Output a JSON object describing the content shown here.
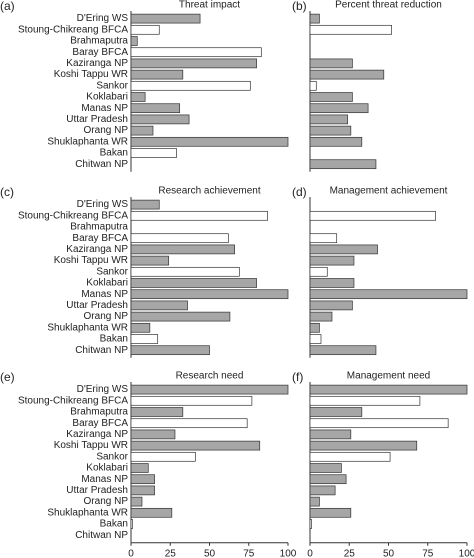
{
  "chart_data": [
    {
      "type": "bar",
      "orientation": "horizontal",
      "panel": "(a)",
      "title": "Threat impact",
      "categories": [
        "D'Ering WS",
        "Stoung-Chikreang BFCA",
        "Brahmaputra",
        "Baray BFCA",
        "Kaziranga NP",
        "Koshi Tappu WR",
        "Sankor",
        "Koklabari",
        "Manas NP",
        "Uttar Pradesh",
        "Orang NP",
        "Shuklaphanta WR",
        "Bakan",
        "Chitwan NP"
      ],
      "values": [
        44,
        18,
        4,
        83,
        80,
        33,
        76,
        9,
        31,
        37,
        14,
        100,
        29,
        null
      ],
      "colors": [
        "#a6a6a6",
        "#ffffff",
        "#a6a6a6",
        "#ffffff",
        "#a6a6a6",
        "#a6a6a6",
        "#ffffff",
        "#a6a6a6",
        "#a6a6a6",
        "#a6a6a6",
        "#a6a6a6",
        "#a6a6a6",
        "#ffffff",
        "#a6a6a6"
      ],
      "xlim": [
        0,
        100
      ]
    },
    {
      "type": "bar",
      "orientation": "horizontal",
      "panel": "(b)",
      "title": "Percent threat reduction",
      "values": [
        6,
        52,
        null,
        null,
        27,
        47,
        4,
        27,
        37,
        24,
        26,
        33,
        null,
        42
      ],
      "colors": [
        "#a6a6a6",
        "#ffffff",
        "#a6a6a6",
        "#ffffff",
        "#a6a6a6",
        "#a6a6a6",
        "#ffffff",
        "#a6a6a6",
        "#a6a6a6",
        "#a6a6a6",
        "#a6a6a6",
        "#a6a6a6",
        "#ffffff",
        "#a6a6a6"
      ],
      "xlim": [
        0,
        100
      ]
    },
    {
      "type": "bar",
      "orientation": "horizontal",
      "panel": "(c)",
      "title": "Research achievement",
      "categories": [
        "D'Ering WS",
        "Stoung-Chikreang BFCA",
        "Brahmaputra",
        "Baray BFCA",
        "Kaziranga NP",
        "Koshi Tappu WR",
        "Sankor",
        "Koklabari",
        "Manas NP",
        "Uttar Pradesh",
        "Orang NP",
        "Shuklaphanta WR",
        "Bakan",
        "Chitwan NP"
      ],
      "values": [
        18,
        87,
        null,
        62,
        66,
        24,
        69,
        80,
        100,
        36,
        63,
        12,
        17,
        50
      ],
      "colors": [
        "#a6a6a6",
        "#ffffff",
        "#a6a6a6",
        "#ffffff",
        "#a6a6a6",
        "#a6a6a6",
        "#ffffff",
        "#a6a6a6",
        "#a6a6a6",
        "#a6a6a6",
        "#a6a6a6",
        "#a6a6a6",
        "#ffffff",
        "#a6a6a6"
      ],
      "xlim": [
        0,
        100
      ]
    },
    {
      "type": "bar",
      "orientation": "horizontal",
      "panel": "(d)",
      "title": "Management achievement",
      "values": [
        null,
        80,
        null,
        17,
        43,
        28,
        11,
        28,
        100,
        27,
        14,
        6,
        7,
        42
      ],
      "colors": [
        "#a6a6a6",
        "#ffffff",
        "#a6a6a6",
        "#ffffff",
        "#a6a6a6",
        "#a6a6a6",
        "#ffffff",
        "#a6a6a6",
        "#a6a6a6",
        "#a6a6a6",
        "#a6a6a6",
        "#a6a6a6",
        "#ffffff",
        "#a6a6a6"
      ],
      "xlim": [
        0,
        100
      ]
    },
    {
      "type": "bar",
      "orientation": "horizontal",
      "panel": "(e)",
      "title": "Research need",
      "categories": [
        "D'Ering WS",
        "Stoung-Chikreang BFCA",
        "Brahmaputra",
        "Baray BFCA",
        "Kaziranga NP",
        "Koshi Tappu WR",
        "Sankor",
        "Koklabari",
        "Manas NP",
        "Uttar Pradesh",
        "Orang NP",
        "Shuklaphanta WR",
        "Bakan",
        "Chitwan NP"
      ],
      "values": [
        100,
        77,
        33,
        74,
        28,
        82,
        41,
        11,
        15,
        15,
        7,
        26,
        1,
        null
      ],
      "colors": [
        "#a6a6a6",
        "#ffffff",
        "#a6a6a6",
        "#ffffff",
        "#a6a6a6",
        "#a6a6a6",
        "#ffffff",
        "#a6a6a6",
        "#a6a6a6",
        "#a6a6a6",
        "#a6a6a6",
        "#a6a6a6",
        "#ffffff",
        "#a6a6a6"
      ],
      "xlim": [
        0,
        100
      ],
      "xticks": [
        0,
        25,
        50,
        75,
        100
      ]
    },
    {
      "type": "bar",
      "orientation": "horizontal",
      "panel": "(f)",
      "title": "Management need",
      "values": [
        100,
        70,
        33,
        88,
        26,
        68,
        51,
        20,
        23,
        16,
        6,
        26,
        1,
        null
      ],
      "colors": [
        "#a6a6a6",
        "#ffffff",
        "#a6a6a6",
        "#ffffff",
        "#a6a6a6",
        "#a6a6a6",
        "#ffffff",
        "#a6a6a6",
        "#a6a6a6",
        "#a6a6a6",
        "#a6a6a6",
        "#a6a6a6",
        "#ffffff",
        "#a6a6a6"
      ],
      "xlim": [
        0,
        100
      ],
      "xticks": [
        0,
        25,
        50,
        75,
        100
      ]
    }
  ]
}
